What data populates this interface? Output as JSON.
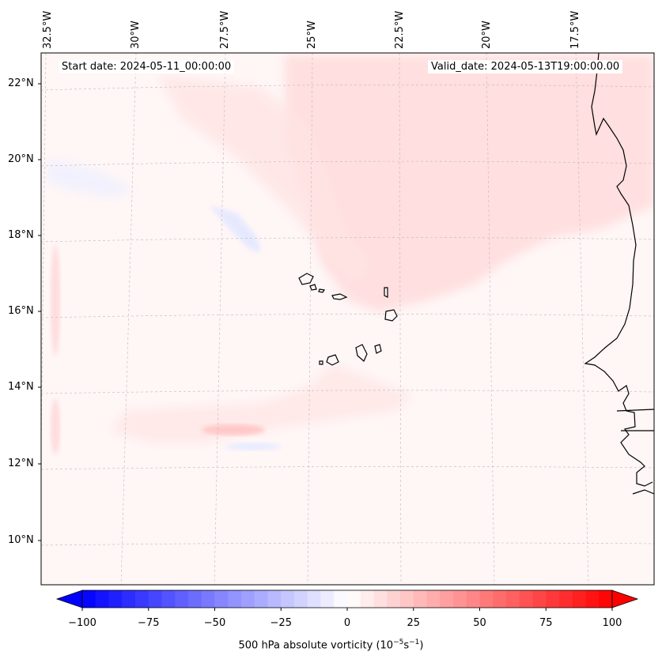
{
  "map": {
    "start_date": "Start date: 2024-05-11_00:00:00",
    "valid_date": "Valid_date: 2024-05-13T19:00:00.00",
    "lat_labels": [
      "22°N",
      "20°N",
      "18°N",
      "16°N",
      "14°N",
      "12°N",
      "10°N"
    ],
    "lon_labels": [
      "32.5°W",
      "30°W",
      "27.5°W",
      "25°W",
      "22.5°W",
      "20°W",
      "17.5°W"
    ],
    "field": "500 hPa absolute vorticity",
    "islands": "Cape Verde Islands",
    "coast": "West African coastline"
  },
  "colorbar": {
    "ticks": [
      "−100",
      "−75",
      "−50",
      "−25",
      "0",
      "25",
      "50",
      "75",
      "100"
    ],
    "title_prefix": "500 hPa absolute vorticity (10",
    "exp1": "−5",
    "mid": "s",
    "exp2": "−1",
    "suffix": ")",
    "min": -100,
    "max": 100,
    "levels": 40,
    "colors": {
      "negative": "#0000ff",
      "zero": "#ffffff",
      "positive": "#ff0000"
    }
  }
}
